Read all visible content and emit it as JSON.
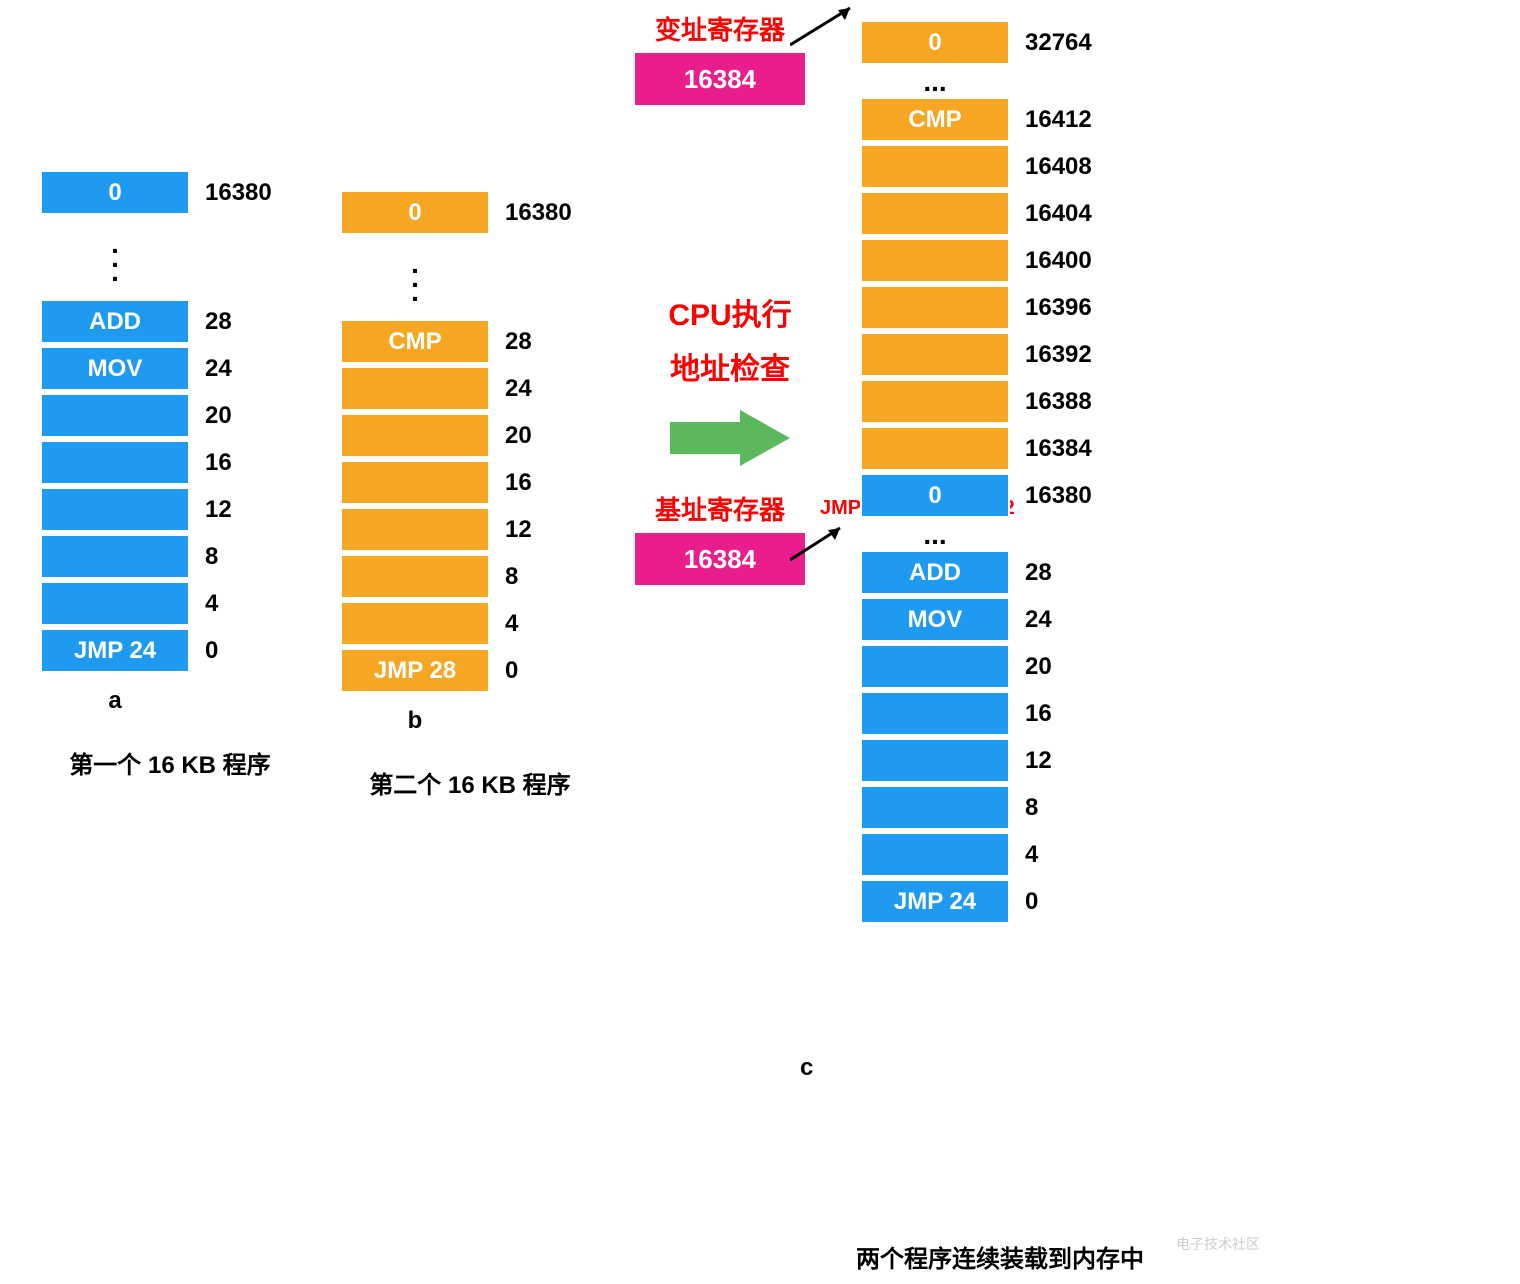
{
  "colors": {
    "blue": "#1e9bf0",
    "orange": "#f5a623",
    "pink": "#e91e8c",
    "red": "#ff0000",
    "green": "#5cb85c",
    "black": "#000000",
    "white": "#ffffff"
  },
  "column_a": {
    "label": "a",
    "caption": "第一个 16 KB 程序",
    "top_value": "0",
    "top_addr": "16380",
    "cells": [
      {
        "text": "ADD",
        "addr": "28"
      },
      {
        "text": "MOV",
        "addr": "24"
      },
      {
        "text": "",
        "addr": "20"
      },
      {
        "text": "",
        "addr": "16"
      },
      {
        "text": "",
        "addr": "12"
      },
      {
        "text": "",
        "addr": "8"
      },
      {
        "text": "",
        "addr": "4"
      },
      {
        "text": "JMP 24",
        "addr": "0"
      }
    ]
  },
  "column_b": {
    "label": "b",
    "caption": "第二个 16 KB 程序",
    "top_value": "0",
    "top_addr": "16380",
    "cells": [
      {
        "text": "CMP",
        "addr": "28"
      },
      {
        "text": "",
        "addr": "24"
      },
      {
        "text": "",
        "addr": "20"
      },
      {
        "text": "",
        "addr": "16"
      },
      {
        "text": "",
        "addr": "12"
      },
      {
        "text": "",
        "addr": "8"
      },
      {
        "text": "",
        "addr": "4"
      },
      {
        "text": "JMP 28",
        "addr": "0"
      }
    ]
  },
  "middle": {
    "index_register_label": "变址寄存器",
    "index_register_value": "16384",
    "cpu_line1": "CPU执行",
    "cpu_line2": "地址检查",
    "base_register_label": "基址寄存器",
    "base_register_value": "16384"
  },
  "column_c": {
    "label": "c",
    "caption": "两个程序连续装载到内存中",
    "jmp_note": "JMP28 -> JMP 16412",
    "top_orange": {
      "text": "0",
      "addr": "32764"
    },
    "orange_cells": [
      {
        "text": "CMP",
        "addr": "16412"
      },
      {
        "text": "",
        "addr": "16408"
      },
      {
        "text": "",
        "addr": "16404"
      },
      {
        "text": "",
        "addr": "16400"
      },
      {
        "text": "",
        "addr": "16396"
      },
      {
        "text": "",
        "addr": "16392"
      },
      {
        "text": "",
        "addr": "16388"
      },
      {
        "text": "",
        "addr": "16384"
      }
    ],
    "blue_top": {
      "text": "0",
      "addr": "16380"
    },
    "blue_cells": [
      {
        "text": "ADD",
        "addr": "28"
      },
      {
        "text": "MOV",
        "addr": "24"
      },
      {
        "text": "",
        "addr": "20"
      },
      {
        "text": "",
        "addr": "16"
      },
      {
        "text": "",
        "addr": "12"
      },
      {
        "text": "",
        "addr": "8"
      },
      {
        "text": "",
        "addr": "4"
      },
      {
        "text": "JMP 24",
        "addr": "0"
      }
    ]
  },
  "watermark": "电子技术社区"
}
